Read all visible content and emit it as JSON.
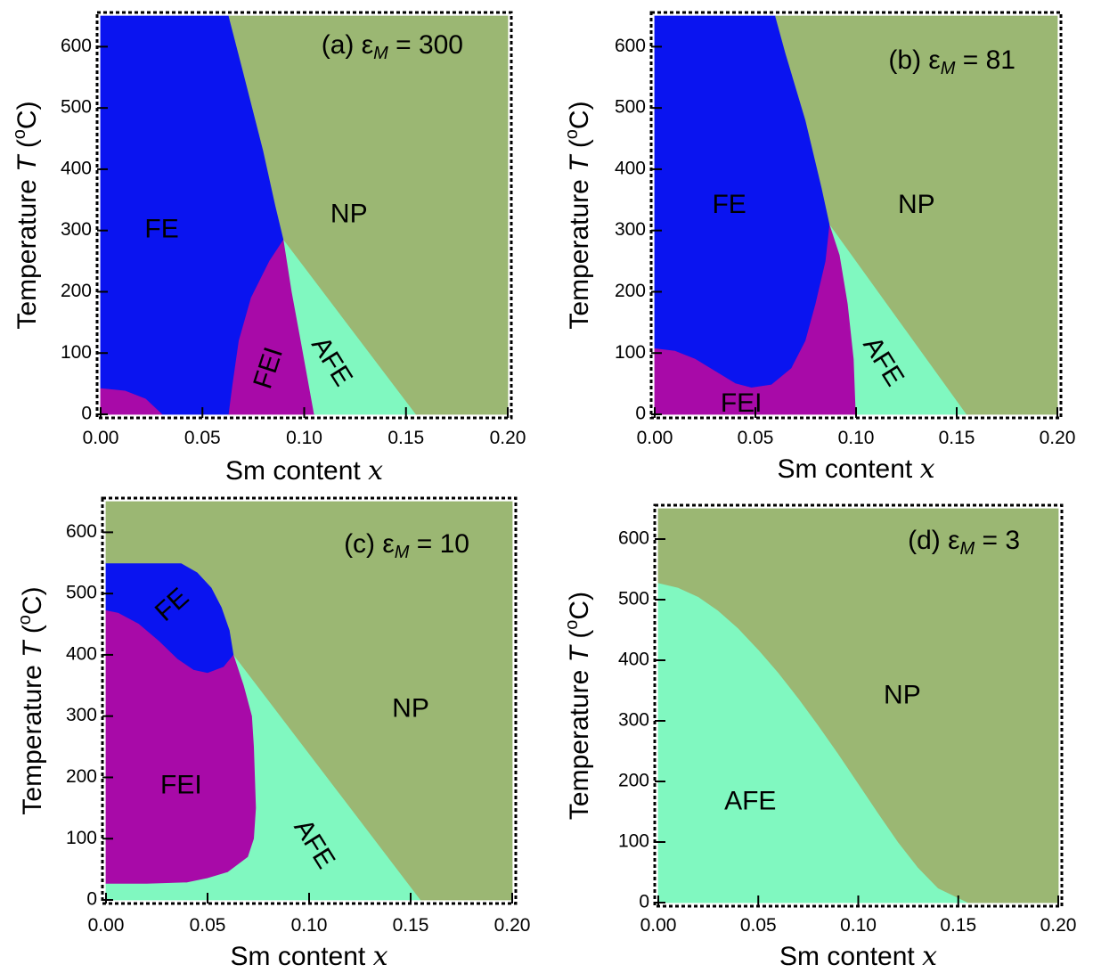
{
  "colors": {
    "FE": "#0a14f0",
    "FEI": "#a80aa8",
    "AFE": "#80f8c0",
    "NP": "#9bb773",
    "frame": "#000000"
  },
  "chart_data": [
    {
      "type": "area",
      "panel": "(a)",
      "title": "(a) εM = 300",
      "title_parts": {
        "prefix": "(a) ε",
        "sub": "M",
        "suffix": " = 300"
      },
      "xlabel": "Sm content x",
      "xlabel_parts": {
        "text": "Sm content ",
        "var": "x"
      },
      "ylabel": "Temperature T (°C)",
      "ylabel_parts": {
        "prefix": "Temperature ",
        "var": "T",
        "mid": " (",
        "sup": "o",
        "suffix": "C)"
      },
      "xlim": [
        0,
        0.2
      ],
      "ylim": [
        0,
        650
      ],
      "x_ticks": [
        "0.00",
        "0.05",
        "0.10",
        "0.15",
        "0.20"
      ],
      "y_ticks": [
        "0",
        "100",
        "200",
        "300",
        "400",
        "500",
        "600"
      ],
      "regions": [
        {
          "phase": "FE",
          "label": "FE",
          "label_at": [
            0.03,
            300
          ],
          "label_rotate": 0,
          "points": [
            [
              0,
              650
            ],
            [
              0.063,
              650
            ],
            [
              0.07,
              560
            ],
            [
              0.08,
              430
            ],
            [
              0.086,
              340
            ],
            [
              0.09,
              285
            ],
            [
              0.083,
              250
            ],
            [
              0.074,
              190
            ],
            [
              0.068,
              120
            ],
            [
              0.065,
              50
            ],
            [
              0.063,
              0
            ],
            [
              0.03,
              0
            ],
            [
              0.022,
              25
            ],
            [
              0.012,
              38
            ],
            [
              0,
              42
            ]
          ]
        },
        {
          "phase": "FEI",
          "label": "FEI",
          "label_at": [
            0.083,
            75
          ],
          "label_rotate": -72,
          "points": [
            [
              0,
              42
            ],
            [
              0.012,
              38
            ],
            [
              0.022,
              25
            ],
            [
              0.03,
              0
            ],
            [
              0,
              0
            ]
          ]
        },
        {
          "phase": "FEI",
          "label": "",
          "label_at": null,
          "label_rotate": 0,
          "points": [
            [
              0.063,
              0
            ],
            [
              0.065,
              50
            ],
            [
              0.068,
              120
            ],
            [
              0.074,
              190
            ],
            [
              0.083,
              250
            ],
            [
              0.09,
              285
            ],
            [
              0.094,
              200
            ],
            [
              0.099,
              110
            ],
            [
              0.105,
              0
            ]
          ]
        },
        {
          "phase": "AFE",
          "label": "AFE",
          "label_at": [
            0.113,
            85
          ],
          "label_rotate": 58,
          "points": [
            [
              0.09,
              285
            ],
            [
              0.155,
              0
            ],
            [
              0.105,
              0
            ],
            [
              0.099,
              110
            ],
            [
              0.094,
              200
            ]
          ]
        },
        {
          "phase": "NP",
          "label": "NP",
          "label_at": [
            0.122,
            325
          ],
          "label_rotate": 0,
          "points": [
            [
              0.063,
              650
            ],
            [
              0.2,
              650
            ],
            [
              0.2,
              0
            ],
            [
              0.155,
              0
            ],
            [
              0.09,
              285
            ],
            [
              0.086,
              340
            ],
            [
              0.08,
              430
            ],
            [
              0.07,
              560
            ]
          ]
        }
      ]
    },
    {
      "type": "area",
      "panel": "(b)",
      "title": "(b) εM = 81",
      "title_parts": {
        "prefix": "(b) ε",
        "sub": "M",
        "suffix": " = 81"
      },
      "xlabel": "Sm content x",
      "xlabel_parts": {
        "text": "Sm content ",
        "var": "x"
      },
      "ylabel": "Temperature T (°C)",
      "ylabel_parts": {
        "prefix": "Temperature ",
        "var": "T",
        "mid": " (",
        "sup": "o",
        "suffix": "C)"
      },
      "xlim": [
        0,
        0.2
      ],
      "ylim": [
        0,
        650
      ],
      "x_ticks": [
        "0.00",
        "0.05",
        "0.10",
        "0.15",
        "0.20"
      ],
      "y_ticks": [
        "0",
        "100",
        "200",
        "300",
        "400",
        "500",
        "600"
      ],
      "regions": [
        {
          "phase": "FE",
          "label": "FE",
          "label_at": [
            0.037,
            340
          ],
          "label_rotate": 0,
          "points": [
            [
              0,
              650
            ],
            [
              0.06,
              650
            ],
            [
              0.065,
              590
            ],
            [
              0.075,
              480
            ],
            [
              0.083,
              370
            ],
            [
              0.087,
              310
            ],
            [
              0.085,
              250
            ],
            [
              0.08,
              180
            ],
            [
              0.075,
              120
            ],
            [
              0.068,
              75
            ],
            [
              0.058,
              48
            ],
            [
              0.048,
              43
            ],
            [
              0.04,
              50
            ],
            [
              0.03,
              70
            ],
            [
              0.02,
              90
            ],
            [
              0.01,
              103
            ],
            [
              0,
              107
            ]
          ]
        },
        {
          "phase": "FEI",
          "label": "FEI",
          "label_at": [
            0.043,
            16
          ],
          "label_rotate": 0,
          "points": [
            [
              0,
              107
            ],
            [
              0.01,
              103
            ],
            [
              0.02,
              90
            ],
            [
              0.03,
              70
            ],
            [
              0.04,
              50
            ],
            [
              0.048,
              43
            ],
            [
              0.058,
              48
            ],
            [
              0.068,
              75
            ],
            [
              0.075,
              120
            ],
            [
              0.08,
              180
            ],
            [
              0.085,
              250
            ],
            [
              0.087,
              310
            ],
            [
              0.092,
              260
            ],
            [
              0.096,
              180
            ],
            [
              0.099,
              90
            ],
            [
              0.1,
              0
            ],
            [
              0,
              0
            ]
          ]
        },
        {
          "phase": "AFE",
          "label": "AFE",
          "label_at": [
            0.113,
            85
          ],
          "label_rotate": 58,
          "points": [
            [
              0.087,
              310
            ],
            [
              0.155,
              0
            ],
            [
              0.1,
              0
            ],
            [
              0.099,
              90
            ],
            [
              0.096,
              180
            ],
            [
              0.092,
              260
            ]
          ]
        },
        {
          "phase": "NP",
          "label": "NP",
          "label_at": [
            0.13,
            340
          ],
          "label_rotate": 0,
          "points": [
            [
              0.06,
              650
            ],
            [
              0.2,
              650
            ],
            [
              0.2,
              0
            ],
            [
              0.155,
              0
            ],
            [
              0.087,
              310
            ],
            [
              0.083,
              370
            ],
            [
              0.075,
              480
            ],
            [
              0.065,
              590
            ]
          ]
        }
      ]
    },
    {
      "type": "area",
      "panel": "(c)",
      "title": "(c) εM = 10",
      "title_parts": {
        "prefix": "(c) ε",
        "sub": "M",
        "suffix": " = 10"
      },
      "xlabel": "Sm content x",
      "xlabel_parts": {
        "text": "Sm content ",
        "var": "x"
      },
      "ylabel": "Temperature T (°C)",
      "ylabel_parts": {
        "prefix": "Temperature ",
        "var": "T",
        "mid": " (",
        "sup": "o",
        "suffix": "C)"
      },
      "xlim": [
        0,
        0.2
      ],
      "ylim": [
        0,
        650
      ],
      "x_ticks": [
        "0.00",
        "0.05",
        "0.10",
        "0.15",
        "0.20"
      ],
      "y_ticks": [
        "0",
        "100",
        "200",
        "300",
        "400",
        "500",
        "600"
      ],
      "regions": [
        {
          "phase": "FE",
          "label": "FE",
          "label_at": [
            0.033,
            480
          ],
          "label_rotate": -42,
          "points": [
            [
              0,
              550
            ],
            [
              0.037,
              550
            ],
            [
              0.045,
              535
            ],
            [
              0.052,
              510
            ],
            [
              0.057,
              478
            ],
            [
              0.061,
              440
            ],
            [
              0.063,
              400
            ],
            [
              0.058,
              380
            ],
            [
              0.05,
              370
            ],
            [
              0.043,
              375
            ],
            [
              0.035,
              393
            ],
            [
              0.026,
              422
            ],
            [
              0.016,
              450
            ],
            [
              0.006,
              468
            ],
            [
              0,
              472
            ]
          ]
        },
        {
          "phase": "FEI",
          "label": "FEI",
          "label_at": [
            0.037,
            185
          ],
          "label_rotate": 0,
          "points": [
            [
              0,
              472
            ],
            [
              0.006,
              468
            ],
            [
              0.016,
              450
            ],
            [
              0.026,
              422
            ],
            [
              0.035,
              393
            ],
            [
              0.043,
              375
            ],
            [
              0.05,
              370
            ],
            [
              0.058,
              380
            ],
            [
              0.063,
              400
            ],
            [
              0.068,
              350
            ],
            [
              0.072,
              300
            ],
            [
              0.073,
              250
            ],
            [
              0.074,
              150
            ],
            [
              0.073,
              100
            ],
            [
              0.07,
              70
            ],
            [
              0.06,
              45
            ],
            [
              0.05,
              35
            ],
            [
              0.04,
              28
            ],
            [
              0.02,
              26
            ],
            [
              0,
              26
            ]
          ]
        },
        {
          "phase": "AFE",
          "label": "AFE",
          "label_at": [
            0.102,
            90
          ],
          "label_rotate": 58,
          "points": [
            [
              0,
              26
            ],
            [
              0.02,
              26
            ],
            [
              0.04,
              28
            ],
            [
              0.05,
              35
            ],
            [
              0.06,
              45
            ],
            [
              0.07,
              70
            ],
            [
              0.073,
              100
            ],
            [
              0.074,
              150
            ],
            [
              0.073,
              250
            ],
            [
              0.072,
              300
            ],
            [
              0.068,
              350
            ],
            [
              0.063,
              400
            ],
            [
              0.155,
              0
            ],
            [
              0,
              0
            ]
          ]
        },
        {
          "phase": "NP",
          "label": "NP",
          "label_at": [
            0.15,
            310
          ],
          "label_rotate": 0,
          "points": [
            [
              0,
              650
            ],
            [
              0.2,
              650
            ],
            [
              0.2,
              0
            ],
            [
              0.155,
              0
            ],
            [
              0.063,
              400
            ],
            [
              0.061,
              440
            ],
            [
              0.057,
              478
            ],
            [
              0.052,
              510
            ],
            [
              0.045,
              535
            ],
            [
              0.037,
              550
            ],
            [
              0,
              550
            ]
          ]
        }
      ]
    },
    {
      "type": "area",
      "panel": "(d)",
      "title": "(d) εM = 3",
      "title_parts": {
        "prefix": "(d) ε",
        "sub": "M",
        "suffix": " = 3"
      },
      "xlabel": "Sm content x",
      "xlabel_parts": {
        "text": "Sm content ",
        "var": "x"
      },
      "ylabel": "Temperature T (°C)",
      "ylabel_parts": {
        "prefix": "Temperature ",
        "var": "T",
        "mid": " (",
        "sup": "o",
        "suffix": "C)"
      },
      "xlim": [
        0,
        0.2
      ],
      "ylim": [
        0,
        650
      ],
      "x_ticks": [
        "0.00",
        "0.05",
        "0.10",
        "0.15",
        "0.20"
      ],
      "y_ticks": [
        "0",
        "100",
        "200",
        "300",
        "400",
        "500",
        "600"
      ],
      "regions": [
        {
          "phase": "AFE",
          "label": "AFE",
          "label_at": [
            0.046,
            165
          ],
          "label_rotate": 0,
          "points": [
            [
              0,
              528
            ],
            [
              0.01,
              520
            ],
            [
              0.02,
              505
            ],
            [
              0.03,
              482
            ],
            [
              0.04,
              453
            ],
            [
              0.05,
              418
            ],
            [
              0.06,
              380
            ],
            [
              0.07,
              338
            ],
            [
              0.08,
              293
            ],
            [
              0.09,
              246
            ],
            [
              0.1,
              197
            ],
            [
              0.11,
              148
            ],
            [
              0.12,
              100
            ],
            [
              0.13,
              58
            ],
            [
              0.14,
              24
            ],
            [
              0.155,
              0
            ],
            [
              0,
              0
            ]
          ]
        },
        {
          "phase": "NP",
          "label": "NP",
          "label_at": [
            0.122,
            340
          ],
          "label_rotate": 0,
          "points": [
            [
              0,
              650
            ],
            [
              0.2,
              650
            ],
            [
              0.2,
              0
            ],
            [
              0.155,
              0
            ],
            [
              0.14,
              24
            ],
            [
              0.13,
              58
            ],
            [
              0.12,
              100
            ],
            [
              0.11,
              148
            ],
            [
              0.1,
              197
            ],
            [
              0.09,
              246
            ],
            [
              0.08,
              293
            ],
            [
              0.07,
              338
            ],
            [
              0.06,
              380
            ],
            [
              0.05,
              418
            ],
            [
              0.04,
              453
            ],
            [
              0.03,
              482
            ],
            [
              0.02,
              505
            ],
            [
              0.01,
              520
            ],
            [
              0,
              528
            ]
          ]
        }
      ]
    }
  ]
}
